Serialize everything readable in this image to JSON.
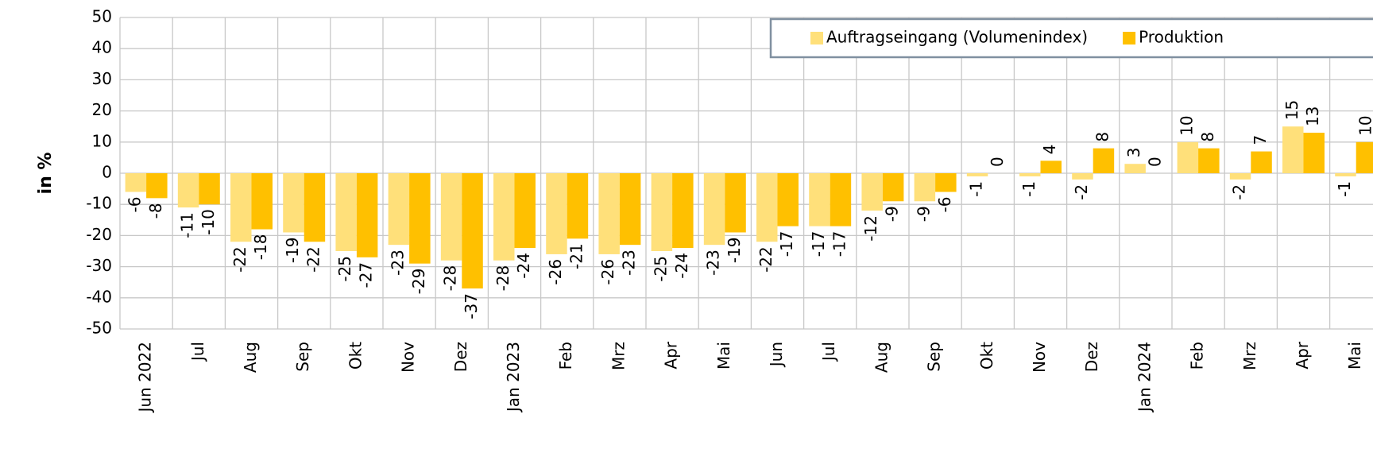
{
  "chart_data": {
    "type": "bar",
    "y_label": "in %",
    "categories": [
      "Jun 2022",
      "Jul",
      "Aug",
      "Sep",
      "Okt",
      "Nov",
      "Dez",
      "Jan 2023",
      "Feb",
      "Mrz",
      "Apr",
      "Mai",
      "Jun",
      "Jul",
      "Aug",
      "Sep",
      "Okt",
      "Nov",
      "Dez",
      "Jan 2024",
      "Feb",
      "Mrz",
      "Apr",
      "Mai"
    ],
    "series": [
      {
        "name": "Auftragseingang (Volumenindex)",
        "color": "#FFE07A",
        "values": [
          -6,
          -11,
          -22,
          -19,
          -25,
          -23,
          -28,
          -28,
          -26,
          -26,
          -25,
          -23,
          -22,
          -17,
          -12,
          -9,
          -1,
          -1,
          -2,
          3,
          10,
          -2,
          15,
          -1
        ]
      },
      {
        "name": "Produktion",
        "color": "#FFC000",
        "values": [
          -8,
          -10,
          -18,
          -22,
          -27,
          -29,
          -37,
          -24,
          -21,
          -23,
          -24,
          -19,
          -17,
          -17,
          -9,
          -6,
          0,
          4,
          8,
          0,
          8,
          7,
          13,
          10
        ]
      }
    ],
    "ylim": [
      -50,
      50
    ],
    "yticks": [
      -50,
      -40,
      -30,
      -20,
      -10,
      0,
      10,
      20,
      30,
      40,
      50
    ],
    "grid": true,
    "legend": "top-right"
  }
}
